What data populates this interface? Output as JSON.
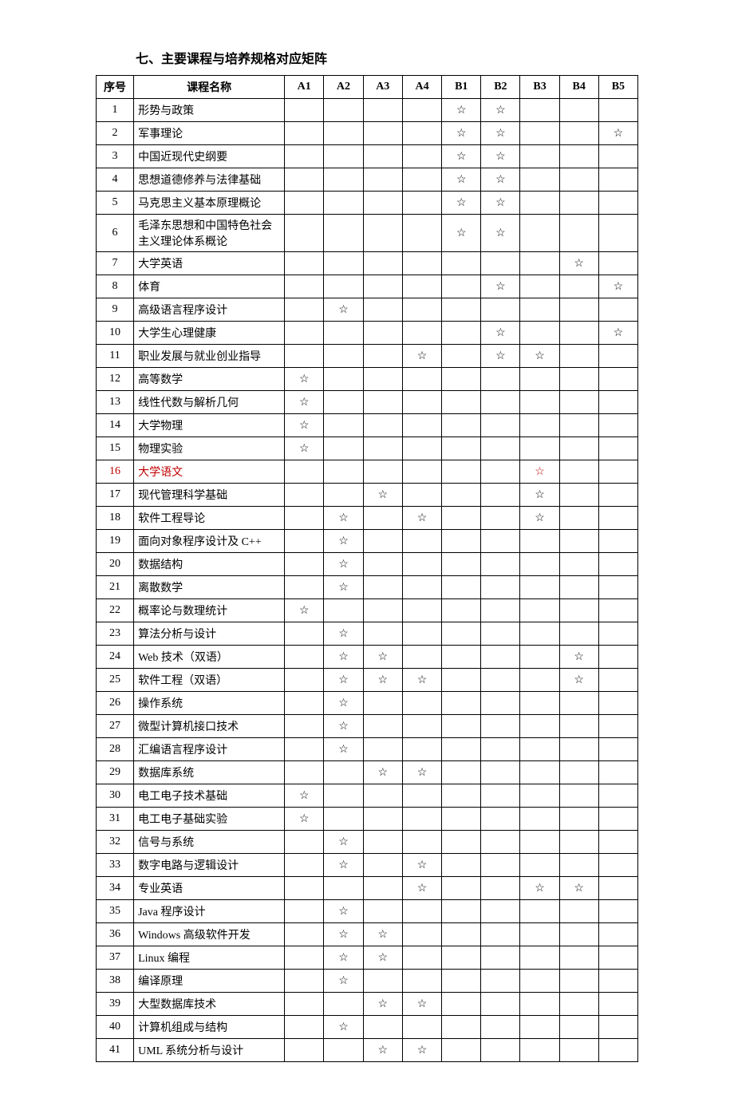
{
  "title": "七、主要课程与培养规格对应矩阵",
  "star": "☆",
  "headers": {
    "idx": "序号",
    "course": "课程名称",
    "cols": [
      "A1",
      "A2",
      "A3",
      "A4",
      "B1",
      "B2",
      "B3",
      "B4",
      "B5"
    ]
  },
  "rows": [
    {
      "idx": "1",
      "name": "形势与政策",
      "marks": {
        "B1": true,
        "B2": true
      }
    },
    {
      "idx": "2",
      "name": "军事理论",
      "marks": {
        "B1": true,
        "B2": true,
        "B5": true
      }
    },
    {
      "idx": "3",
      "name": "中国近现代史纲要",
      "marks": {
        "B1": true,
        "B2": true
      }
    },
    {
      "idx": "4",
      "name": "思想道德修养与法律基础",
      "marks": {
        "B1": true,
        "B2": true
      }
    },
    {
      "idx": "5",
      "name": "马克思主义基本原理概论",
      "marks": {
        "B1": true,
        "B2": true
      }
    },
    {
      "idx": "6",
      "name": "毛泽东思想和中国特色社会主义理论体系概论",
      "marks": {
        "B1": true,
        "B2": true
      }
    },
    {
      "idx": "7",
      "name": "大学英语",
      "marks": {
        "B4": true
      }
    },
    {
      "idx": "8",
      "name": "体育",
      "marks": {
        "B2": true,
        "B5": true
      }
    },
    {
      "idx": "9",
      "name": "高级语言程序设计",
      "marks": {
        "A2": true
      }
    },
    {
      "idx": "10",
      "name": "大学生心理健康",
      "marks": {
        "B2": true,
        "B5": true
      }
    },
    {
      "idx": "11",
      "name": "职业发展与就业创业指导",
      "marks": {
        "A4": true,
        "B2": true,
        "B3": true
      }
    },
    {
      "idx": "12",
      "name": "高等数学",
      "marks": {
        "A1": true
      }
    },
    {
      "idx": "13",
      "name": "线性代数与解析几何",
      "marks": {
        "A1": true
      }
    },
    {
      "idx": "14",
      "name": "大学物理",
      "marks": {
        "A1": true
      }
    },
    {
      "idx": "15",
      "name": "物理实验",
      "marks": {
        "A1": true
      }
    },
    {
      "idx": "16",
      "name": "大学语文",
      "marks": {
        "B3": true
      },
      "red": true
    },
    {
      "idx": "17",
      "name": "现代管理科学基础",
      "marks": {
        "A3": true,
        "B3": true
      }
    },
    {
      "idx": "18",
      "name": "软件工程导论",
      "marks": {
        "A2": true,
        "A4": true,
        "B3": true
      }
    },
    {
      "idx": "19",
      "name": "面向对象程序设计及 C++",
      "marks": {
        "A2": true
      }
    },
    {
      "idx": "20",
      "name": "数据结构",
      "marks": {
        "A2": true
      }
    },
    {
      "idx": "21",
      "name": "离散数学",
      "marks": {
        "A2": true
      }
    },
    {
      "idx": "22",
      "name": "概率论与数理统计",
      "marks": {
        "A1": true
      }
    },
    {
      "idx": "23",
      "name": "算法分析与设计",
      "marks": {
        "A2": true
      }
    },
    {
      "idx": "24",
      "name": "Web 技术（双语）",
      "marks": {
        "A2": true,
        "A3": true,
        "B4": true
      }
    },
    {
      "idx": "25",
      "name": "软件工程（双语）",
      "marks": {
        "A2": true,
        "A3": true,
        "A4": true,
        "B4": true
      }
    },
    {
      "idx": "26",
      "name": "操作系统",
      "marks": {
        "A2": true
      }
    },
    {
      "idx": "27",
      "name": "微型计算机接口技术",
      "marks": {
        "A2": true
      }
    },
    {
      "idx": "28",
      "name": "汇编语言程序设计",
      "marks": {
        "A2": true
      }
    },
    {
      "idx": "29",
      "name": "数据库系统",
      "marks": {
        "A3": true,
        "A4": true
      }
    },
    {
      "idx": "30",
      "name": "电工电子技术基础",
      "marks": {
        "A1": true
      }
    },
    {
      "idx": "31",
      "name": "电工电子基础实验",
      "marks": {
        "A1": true
      }
    },
    {
      "idx": "32",
      "name": "信号与系统",
      "marks": {
        "A2": true
      }
    },
    {
      "idx": "33",
      "name": "数字电路与逻辑设计",
      "marks": {
        "A2": true,
        "A4": true
      }
    },
    {
      "idx": "34",
      "name": "专业英语",
      "marks": {
        "A4": true,
        "B3": true,
        "B4": true
      }
    },
    {
      "idx": "35",
      "name": "Java 程序设计",
      "marks": {
        "A2": true
      }
    },
    {
      "idx": "36",
      "name": "Windows 高级软件开发",
      "marks": {
        "A2": true,
        "A3": true
      }
    },
    {
      "idx": "37",
      "name": "Linux 编程",
      "marks": {
        "A2": true,
        "A3": true
      }
    },
    {
      "idx": "38",
      "name": "编译原理",
      "marks": {
        "A2": true
      }
    },
    {
      "idx": "39",
      "name": "大型数据库技术",
      "marks": {
        "A3": true,
        "A4": true
      }
    },
    {
      "idx": "40",
      "name": "计算机组成与结构",
      "marks": {
        "A2": true
      }
    },
    {
      "idx": "41",
      "name": "UML 系统分析与设计",
      "marks": {
        "A3": true,
        "A4": true
      }
    }
  ]
}
